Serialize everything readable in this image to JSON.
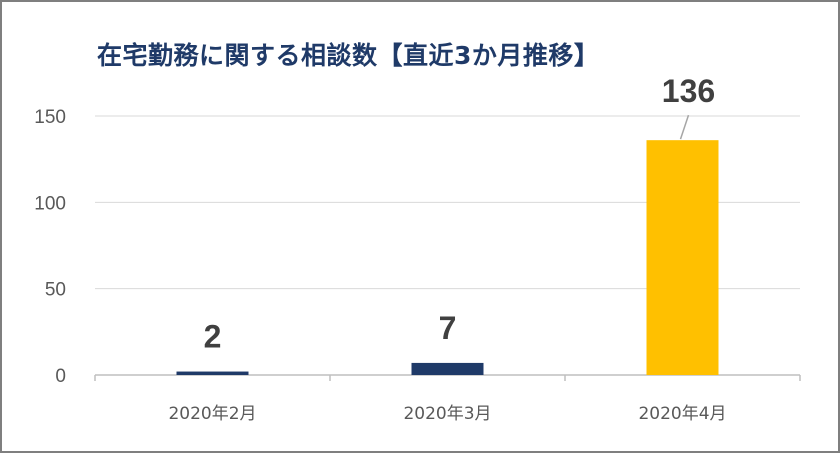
{
  "chart_data": {
    "type": "bar",
    "title": "在宅勤務に関する相談数【直近3か月推移】",
    "xlabel": "",
    "ylabel": "",
    "categories": [
      "2020年2月",
      "2020年3月",
      "2020年4月"
    ],
    "values": [
      2,
      7,
      136
    ],
    "colors": [
      "#1f3a68",
      "#1f3a68",
      "#ffc000"
    ],
    "yticks": [
      "0",
      "50",
      "100",
      "150"
    ],
    "ylim": [
      0,
      150
    ],
    "grid": true,
    "legend": "none"
  }
}
